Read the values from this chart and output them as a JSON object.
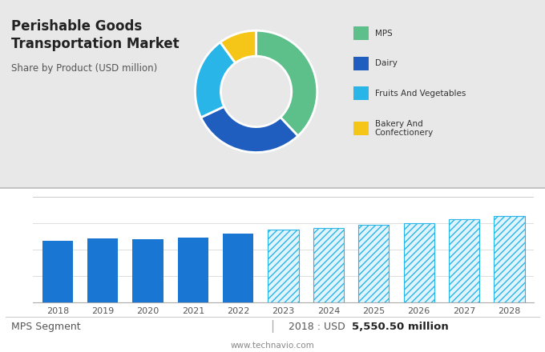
{
  "title_line1": "Perishable Goods",
  "title_line2": "Transportation Market",
  "subtitle": "Share by Product (USD million)",
  "pie_values": [
    38,
    30,
    22,
    10
  ],
  "pie_labels": [
    "MPS",
    "Dairy",
    "Fruits And Vegetables",
    "Bakery And\nConfectionery"
  ],
  "pie_colors": [
    "#5dbf8a",
    "#1f5dbe",
    "#29b5e8",
    "#f5c518"
  ],
  "bar_years_hist": [
    2018,
    2019,
    2020,
    2021,
    2022
  ],
  "bar_values_hist": [
    5550,
    5800,
    5700,
    5900,
    6200
  ],
  "bar_years_proj": [
    2023,
    2024,
    2025,
    2026,
    2027,
    2028
  ],
  "bar_values_proj": [
    6600,
    6750,
    7000,
    7200,
    7500,
    7800
  ],
  "bar_color_hist": "#1976d2",
  "bar_color_proj_edge": "#29b5e8",
  "bar_color_proj_face": "#e0f4fd",
  "footer_left": "MPS Segment",
  "footer_right": "5,550.50 million",
  "footer_year": "2018 : USD ",
  "footer_url": "www.technavio.com",
  "bg_top": "#e8e8e8",
  "bg_bottom": "#ffffff",
  "grid_color": "#dddddd"
}
